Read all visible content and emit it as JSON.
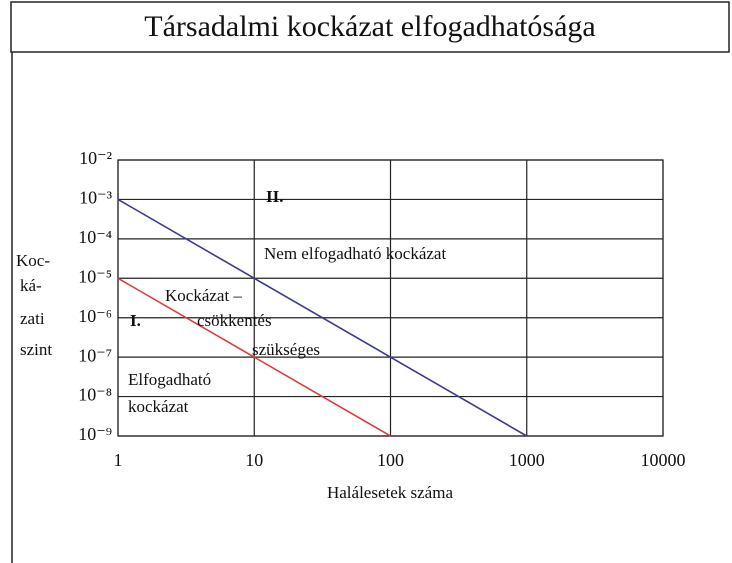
{
  "chart_data": {
    "type": "line",
    "title": "Társadalmi kockázat elfogadhatósága",
    "xlabel": "Halálesetek száma",
    "ylabel": [
      "Koc-",
      "ká-",
      "zati",
      "szint"
    ],
    "log_x": true,
    "log_y": true,
    "grid": true,
    "xlim": [
      1,
      10000
    ],
    "xticks": [
      1,
      10,
      100,
      1000,
      10000
    ],
    "ylim": [
      1e-09,
      0.01
    ],
    "yticks": [
      {
        "value": 0.01,
        "label": "10⁻²"
      },
      {
        "value": 0.001,
        "label": "10⁻³"
      },
      {
        "value": 0.0001,
        "label": "10⁻⁴"
      },
      {
        "value": 1e-05,
        "label": "10⁻⁵"
      },
      {
        "value": 1e-06,
        "label": "10⁻⁶"
      },
      {
        "value": 1e-07,
        "label": "10⁻⁷"
      },
      {
        "value": 1e-08,
        "label": "10⁻⁸"
      },
      {
        "value": 1e-09,
        "label": "10⁻⁹"
      }
    ],
    "series": [
      {
        "color": "#3b3b8f",
        "x": [
          1,
          1000
        ],
        "values": [
          0.001,
          1e-09
        ]
      },
      {
        "color": "#e03c3c",
        "x": [
          1,
          100
        ],
        "values": [
          1e-05,
          1e-09
        ]
      }
    ],
    "annotations": [
      "II.",
      "Nem elfogadható kockázat",
      "Kockázat –",
      "csökkentés",
      "szükséges",
      "I.",
      "Elfogadható",
      "kockázat"
    ]
  }
}
